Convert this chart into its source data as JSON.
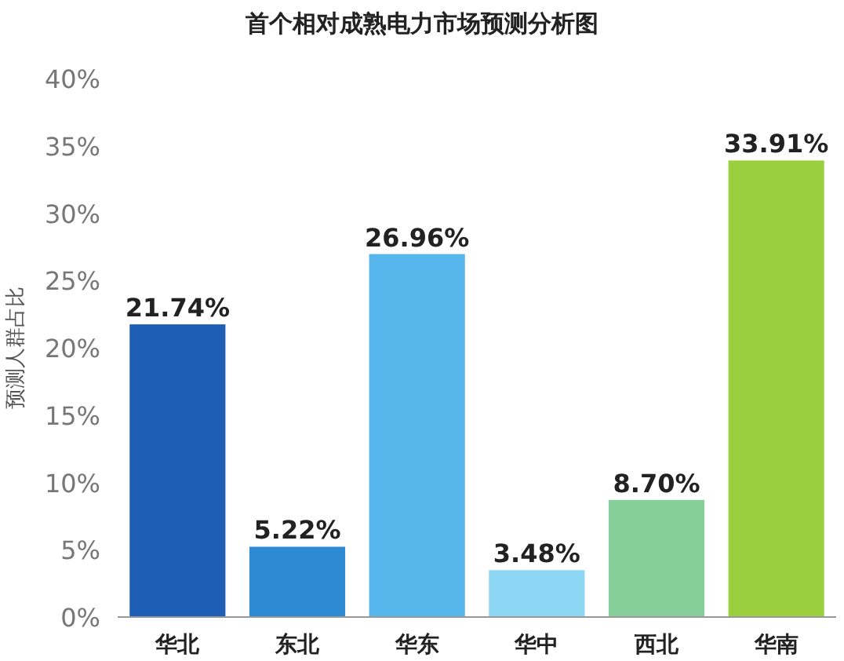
{
  "chart_data": {
    "type": "bar",
    "title": "首个相对成熟电力市场预测分析图",
    "ylabel": "预测人群占比",
    "categories": [
      "华北",
      "东北",
      "华东",
      "华中",
      "西北",
      "华南"
    ],
    "values": [
      21.74,
      5.22,
      26.96,
      3.48,
      8.7,
      33.91
    ],
    "colors": [
      "#1e5fb5",
      "#2f8ad4",
      "#56b6ec",
      "#8dd7f4",
      "#86cf9a",
      "#9ccf3e"
    ],
    "ylim": [
      0,
      40
    ],
    "yticks": [
      {
        "value": 0,
        "label": "0%"
      },
      {
        "value": 5,
        "label": "5%"
      },
      {
        "value": 10,
        "label": "10%"
      },
      {
        "value": 15,
        "label": "15%"
      },
      {
        "value": 20,
        "label": "20%"
      },
      {
        "value": 25,
        "label": "25%"
      },
      {
        "value": 30,
        "label": "30%"
      },
      {
        "value": 35,
        "label": "35%"
      },
      {
        "value": 40,
        "label": "40%"
      }
    ],
    "value_labels": [
      "21.74%",
      "5.22%",
      "26.96%",
      "3.48%",
      "8.70%",
      "33.91%"
    ]
  }
}
